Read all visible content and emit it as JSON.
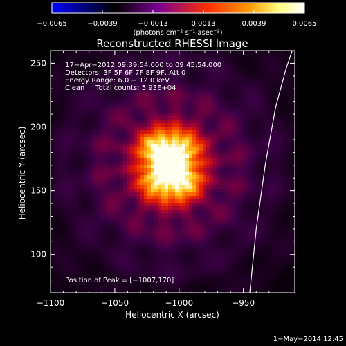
{
  "chart_data": {
    "type": "heatmap",
    "title": "Reconstructed RHESSI Image",
    "xlabel": "Heliocentric X (arcsec)",
    "ylabel": "Heliocentric Y (arcsec)",
    "xlim": [
      -1100,
      -910
    ],
    "ylim": [
      70,
      260
    ],
    "xticks": [
      {
        "value": -1100,
        "label": "−1100"
      },
      {
        "value": -1050,
        "label": "−1050"
      },
      {
        "value": -1000,
        "label": "−1000"
      },
      {
        "value": -950,
        "label": "−950"
      }
    ],
    "yticks": [
      {
        "value": 100,
        "label": "100"
      },
      {
        "value": 150,
        "label": "150"
      },
      {
        "value": 200,
        "label": "200"
      },
      {
        "value": 250,
        "label": "250"
      }
    ],
    "colorbar": {
      "range": [
        -0.0065,
        0.0065
      ],
      "ticks": [
        {
          "value": -0.0065,
          "label": "−0.0065"
        },
        {
          "value": -0.0039,
          "label": "−0.0039"
        },
        {
          "value": -0.0013,
          "label": "−0.0013"
        },
        {
          "value": 0.0013,
          "label": "0.0013"
        },
        {
          "value": 0.0039,
          "label": "0.0039"
        },
        {
          "value": 0.0065,
          "label": "0.0065"
        }
      ],
      "unit_label": "(photons cm⁻² s⁻¹ asec⁻²)",
      "colormap": [
        "#0000ff",
        "#000000",
        "#7a0090",
        "#ff3000",
        "#ff9a00",
        "#ffff80",
        "#ffffff"
      ]
    },
    "annotations": [
      "17−Apr−2012 09:39:54.000 to 09:45:54.000",
      "Detectors: 3F 5F 6F 7F 8F 9F, Att 0",
      "Energy Range: 6.0 − 12.0 keV",
      "Clean     Total counts: 5.93E+04"
    ],
    "peak_label": "Position of Peak = [−1007,170]",
    "peak": {
      "x": -1007,
      "y": 170
    },
    "limb_curve": [
      {
        "x": -945,
        "y": 70
      },
      {
        "x": -940,
        "y": 120
      },
      {
        "x": -933,
        "y": 170
      },
      {
        "x": -925,
        "y": 215
      },
      {
        "x": -917,
        "y": 245
      },
      {
        "x": -912,
        "y": 260
      }
    ]
  },
  "footer": {
    "timestamp": "1−May−2014 12:45"
  }
}
